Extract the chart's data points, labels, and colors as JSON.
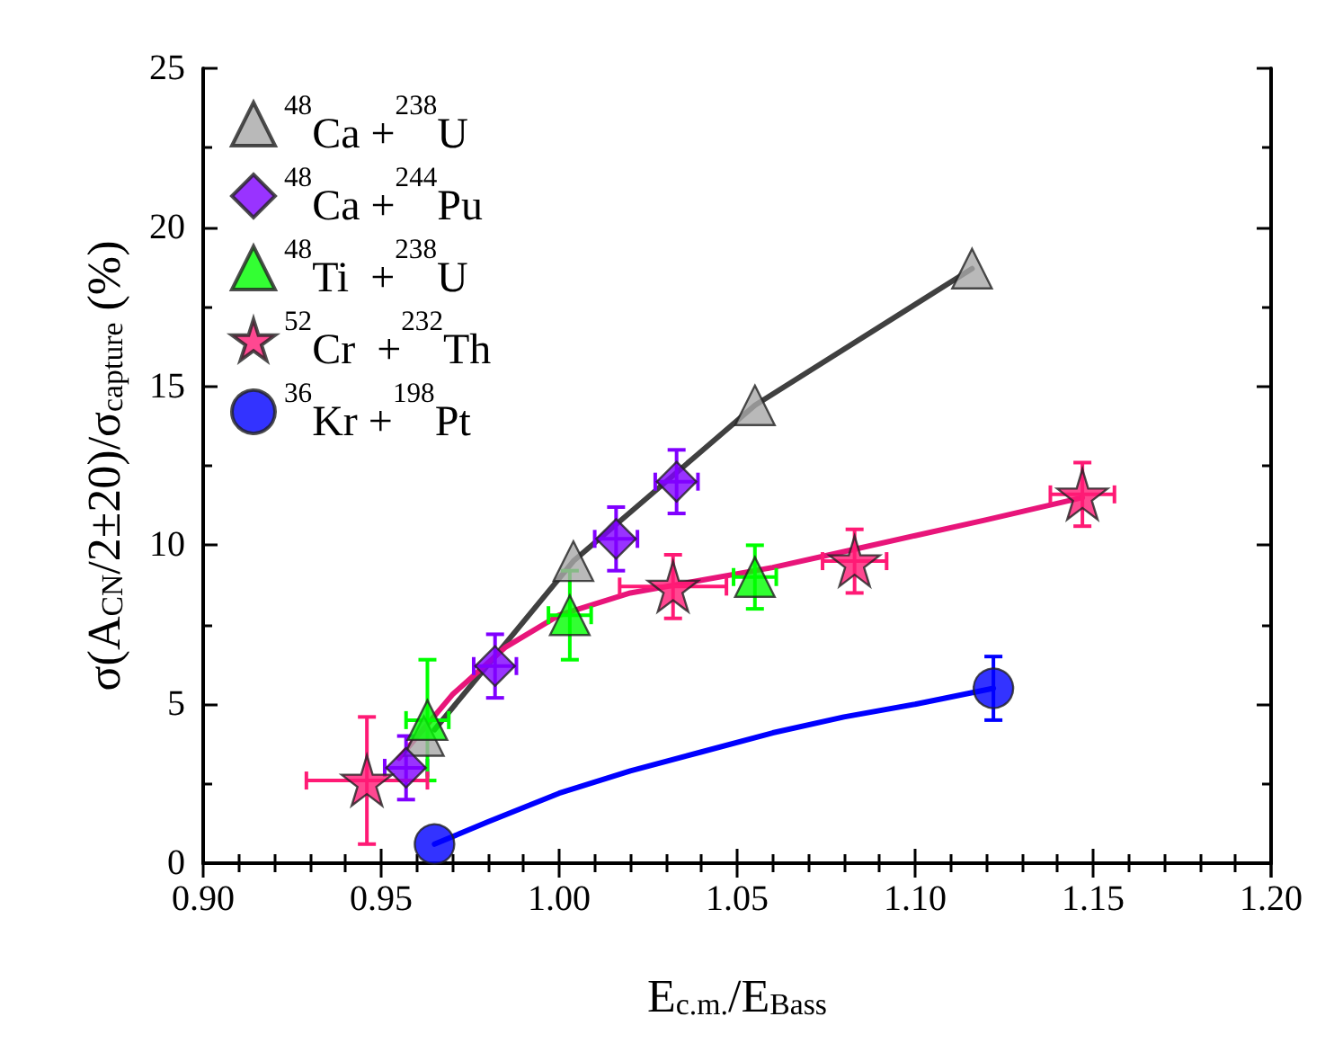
{
  "chart_data": {
    "type": "scatter",
    "xlabel": "E$_{c.m.}$/E$_{Bass}$",
    "ylabel": "σ(A$_{CN}$/2±20)/σ$_{capture}$ (%)",
    "xlim": [
      0.9,
      1.2
    ],
    "xticks": [
      {
        "value": 0.9,
        "label": "0.90"
      },
      {
        "value": 0.95,
        "label": "0.95"
      },
      {
        "value": 1.0,
        "label": "1.00"
      },
      {
        "value": 1.05,
        "label": "1.05"
      },
      {
        "value": 1.1,
        "label": "1.10"
      },
      {
        "value": 1.15,
        "label": "1.15"
      },
      {
        "value": 1.2,
        "label": "1.20"
      }
    ],
    "ylim": [
      0,
      25
    ],
    "yticks": [
      0,
      5,
      10,
      15,
      20,
      25
    ],
    "grid": false,
    "legend": "top left",
    "series": [
      {
        "type": "line",
        "color": "#404040",
        "marker": "none",
        "line_style": "solid",
        "x": [
          0.965,
          1.004,
          1.055,
          1.116
        ],
        "values": [
          4.2,
          9.5,
          14.4,
          18.7
        ]
      },
      {
        "type": "line",
        "color": "#e8157a",
        "marker": "none",
        "line_style": "solid",
        "x": [
          0.955,
          0.97,
          0.985,
          1.0,
          1.02,
          1.04,
          1.06,
          1.08,
          1.1,
          1.12,
          1.147
        ],
        "values": [
          3.3,
          5.3,
          6.8,
          7.8,
          8.5,
          8.9,
          9.3,
          9.8,
          10.3,
          10.8,
          11.5
        ]
      },
      {
        "type": "line",
        "color": "#0000ff",
        "marker": "none",
        "line_style": "solid",
        "x": [
          0.965,
          0.98,
          1.0,
          1.02,
          1.04,
          1.06,
          1.08,
          1.1,
          1.122
        ],
        "values": [
          0.6,
          1.3,
          2.2,
          2.9,
          3.5,
          4.1,
          4.6,
          5.0,
          5.5
        ]
      },
      {
        "name": "$^{48}$Ca +$^{238}$U",
        "color": "#a8a8a8",
        "marker": "triangle",
        "x": [
          0.962,
          1.004,
          1.055,
          1.116
        ],
        "values": [
          4.0,
          9.5,
          14.4,
          18.7
        ]
      },
      {
        "name": "$^{48}$Ca +$^{244}$Pu",
        "color": "#8000ff",
        "marker": "diamond",
        "x": [
          0.957,
          0.982,
          1.016,
          1.033
        ],
        "values": [
          3.0,
          6.2,
          10.2,
          12.0
        ],
        "errors": [
          1.0,
          1.0,
          1.0,
          1.0
        ],
        "xerrors": [
          0.006,
          0.006,
          0.006,
          0.006
        ]
      },
      {
        "name": "$^{48}$Ti  +$^{238}$U",
        "color": "#00ff00",
        "marker": "triangle",
        "x": [
          0.963,
          1.003,
          1.055
        ],
        "values": [
          4.5,
          7.8,
          9.0
        ],
        "errors": [
          1.9,
          1.4,
          1.0
        ],
        "xerrors": [
          0.006,
          0.006,
          0.006
        ]
      },
      {
        "name": "$^{52}$Cr  +$^{232}$Th",
        "color": "#ff1a75",
        "marker": "star",
        "x": [
          0.946,
          1.032,
          1.083,
          1.147
        ],
        "values": [
          2.6,
          8.7,
          9.5,
          11.6
        ],
        "errors": [
          2.0,
          1.0,
          1.0,
          1.0
        ],
        "xerrors": [
          0.017,
          0.015,
          0.009,
          0.009
        ]
      },
      {
        "name": "$^{36}$Kr +$^{198}$Pt",
        "color": "#0000ff",
        "marker": "circle",
        "x": [
          0.965,
          1.122
        ],
        "values": [
          0.6,
          5.5
        ],
        "errors": [
          null,
          1.0
        ]
      }
    ]
  }
}
